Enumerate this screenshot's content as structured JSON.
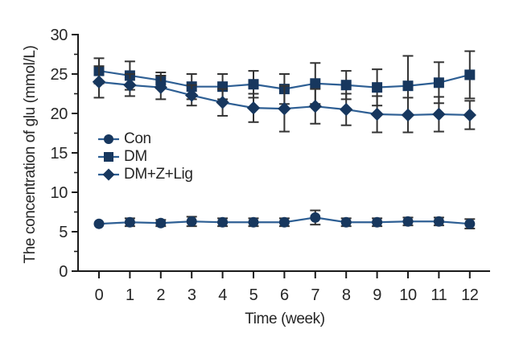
{
  "figure": {
    "background": "#ffffff"
  },
  "chart_data": {
    "type": "line",
    "title": "",
    "xlabel": "Time (week)",
    "ylabel": "The concentration of glu (mmol/L)",
    "x": [
      0,
      1,
      2,
      3,
      4,
      5,
      6,
      7,
      8,
      9,
      10,
      11,
      12
    ],
    "xlim": [
      -0.7,
      12.7
    ],
    "ylim": [
      0,
      30
    ],
    "yticks": [
      0,
      5,
      10,
      15,
      20,
      25,
      30
    ],
    "y_minor_ticks": [
      2.5,
      7.5,
      12.5,
      17.5,
      22.5,
      27.5
    ],
    "grid": false,
    "error_bars": true,
    "legend_position": "inside-left-middle",
    "legend_labels": [
      "Con",
      "DM",
      "DM+Z+Lig"
    ],
    "series": [
      {
        "name": "Con",
        "marker": "circle",
        "values": [
          6.0,
          6.2,
          6.1,
          6.3,
          6.2,
          6.2,
          6.2,
          6.8,
          6.2,
          6.2,
          6.3,
          6.3,
          6.0
        ],
        "errors": [
          0.0,
          0.5,
          0.4,
          0.6,
          0.5,
          0.5,
          0.5,
          0.9,
          0.5,
          0.5,
          0.5,
          0.5,
          0.6
        ]
      },
      {
        "name": "DM",
        "marker": "square",
        "values": [
          25.4,
          24.8,
          24.2,
          23.4,
          23.4,
          23.7,
          23.1,
          23.8,
          23.6,
          23.3,
          23.5,
          23.9,
          24.9
        ],
        "errors": [
          1.6,
          1.8,
          1.0,
          1.6,
          1.6,
          1.7,
          1.9,
          2.6,
          1.8,
          2.3,
          3.8,
          2.6,
          3.0
        ]
      },
      {
        "name": "DM+Z+Lig",
        "marker": "diamond",
        "values": [
          24.0,
          23.6,
          23.3,
          22.3,
          21.4,
          20.7,
          20.6,
          20.9,
          20.5,
          19.9,
          19.8,
          19.9,
          19.8
        ],
        "errors": [
          2.0,
          1.4,
          1.5,
          1.3,
          1.7,
          1.8,
          2.9,
          2.2,
          2.0,
          2.3,
          2.2,
          2.2,
          1.8
        ]
      }
    ],
    "colors": {
      "marker": "#17375e",
      "line": "#2e5f94",
      "error_bar": "#333333",
      "axis": "#1a1a1a",
      "text": "#262626"
    }
  }
}
